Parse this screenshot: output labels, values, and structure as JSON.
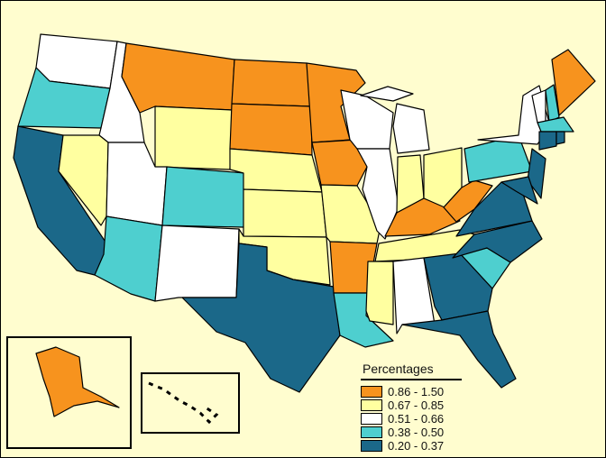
{
  "legend": {
    "title": "Percentages",
    "classes": [
      {
        "label": "0.86 - 1.50",
        "color": "#f7931e"
      },
      {
        "label": "0.67 - 0.85",
        "color": "#ffffa0"
      },
      {
        "label": "0.51 - 0.66",
        "color": "#ffffff"
      },
      {
        "label": "0.38 - 0.50",
        "color": "#4ecfcf"
      },
      {
        "label": "0.20 - 0.37",
        "color": "#1b6889"
      }
    ]
  },
  "state_class": {
    "WA": 2,
    "OR": 3,
    "CA": 4,
    "ID": 2,
    "NV": 1,
    "MT": 0,
    "WY": 1,
    "UT": 2,
    "AZ": 3,
    "CO": 3,
    "NM": 2,
    "ND": 0,
    "SD": 0,
    "NE": 1,
    "KS": 1,
    "OK": 1,
    "TX": 4,
    "MN": 0,
    "IA": 0,
    "MO": 1,
    "AR": 0,
    "LA": 3,
    "WI": 2,
    "IL": 2,
    "MI": 2,
    "IN": 1,
    "OH": 1,
    "KY": 0,
    "TN": 1,
    "MS": 1,
    "AL": 2,
    "GA": 4,
    "FL": 4,
    "SC": 3,
    "NC": 4,
    "VA": 4,
    "WV": 0,
    "PA": 3,
    "NY": 2,
    "NJ": 4,
    "MD": 4,
    "VT": 2,
    "NH": 3,
    "ME": 0,
    "MA": 3,
    "CT": 4,
    "RI": 4,
    "AK": 0,
    "HI": 2
  },
  "background": "#fffdcf"
}
